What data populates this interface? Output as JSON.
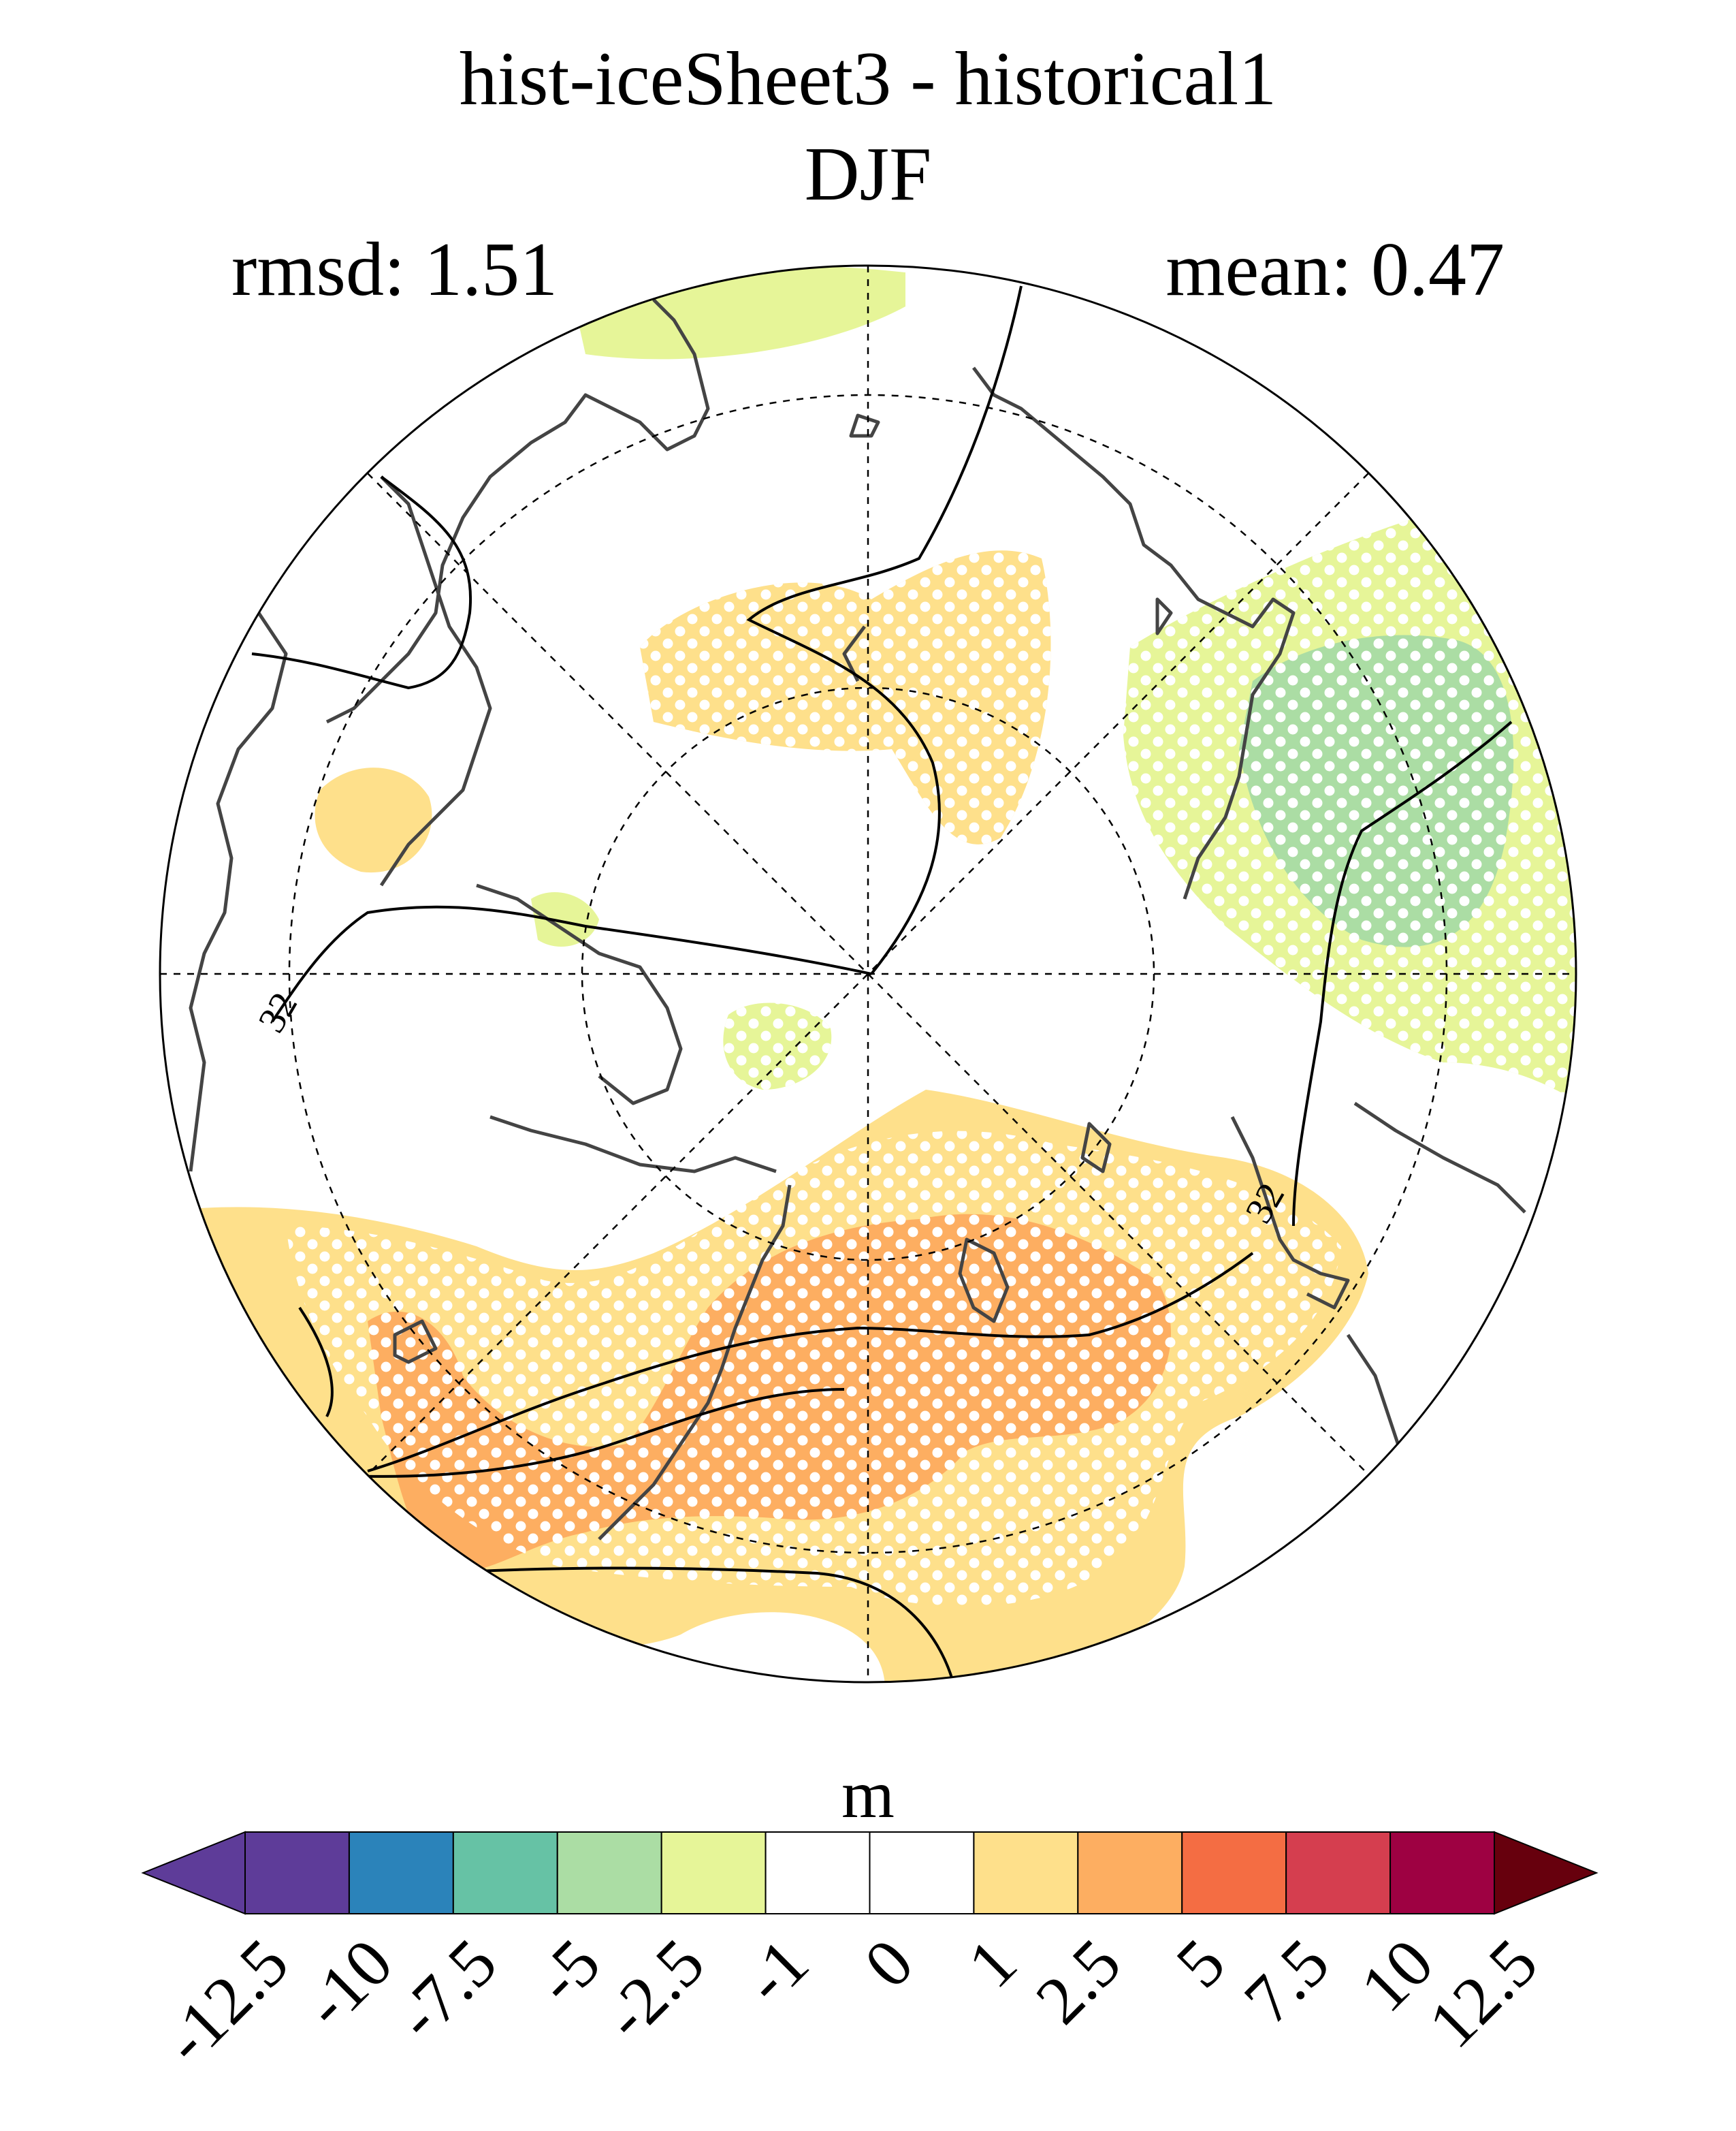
{
  "title": {
    "line1": "hist-iceSheet3 - historical1",
    "line2": "DJF"
  },
  "stats": {
    "rmsd": "rmsd: 1.51",
    "mean": "mean: 0.47"
  },
  "map": {
    "projection": "north-polar-stereographic",
    "graticule": "dashed",
    "contour_label": "32",
    "stippling": "white-dots"
  },
  "colorbar": {
    "unit": "m",
    "ticks": [
      "-12.5",
      "-10",
      "-7.5",
      "-5",
      "-2.5",
      "-1",
      "0",
      "1",
      "2.5",
      "5",
      "7.5",
      "10",
      "12.5"
    ],
    "colors": [
      "#5e3c99",
      "#2b83ba",
      "#66c2a5",
      "#abdda4",
      "#e6f598",
      "#ffffff",
      "#ffffff",
      "#fee08b",
      "#fdae61",
      "#f46d43",
      "#d53e4f",
      "#9e0142"
    ],
    "under_color": "#5e3c99",
    "over_color": "#67000d"
  }
}
